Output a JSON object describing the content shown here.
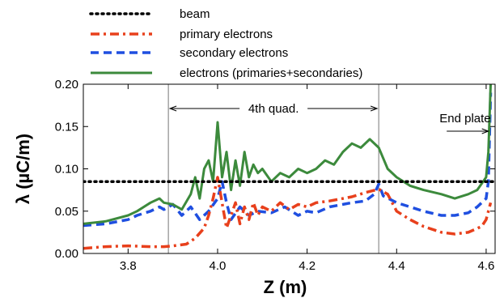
{
  "chart_data": {
    "type": "line",
    "title": "",
    "xlabel": "Z (m)",
    "ylabel": "λ (µC/m)",
    "xlim": [
      3.7,
      4.62
    ],
    "ylim": [
      0.0,
      0.2
    ],
    "xticks": [
      "3.8",
      "4.0",
      "4.2",
      "4.4",
      "4.6"
    ],
    "yticks": [
      "0.00",
      "0.05",
      "0.10",
      "0.15",
      "0.20"
    ],
    "grid": false,
    "legend_position": "top-left, above plot",
    "vlines": [
      3.89,
      4.36
    ],
    "annotations": {
      "quad_label": "4th quad.",
      "quad_range": [
        3.89,
        4.36
      ],
      "endplate_label": "End plate",
      "endplate_arrow_from": 4.53,
      "endplate_arrow_to": 4.605
    },
    "series": [
      {
        "name": "beam",
        "color": "#000000",
        "style": "dotted",
        "x": [
          3.7,
          4.62
        ],
        "y": [
          0.085,
          0.085
        ]
      },
      {
        "name": "primary electrons",
        "color": "#e8401c",
        "style": "dashdot",
        "x": [
          3.7,
          3.75,
          3.8,
          3.85,
          3.88,
          3.9,
          3.93,
          3.95,
          3.97,
          3.98,
          3.99,
          4.0,
          4.01,
          4.02,
          4.03,
          4.04,
          4.05,
          4.06,
          4.07,
          4.08,
          4.09,
          4.1,
          4.12,
          4.14,
          4.16,
          4.18,
          4.2,
          4.22,
          4.25,
          4.28,
          4.3,
          4.33,
          4.36,
          4.38,
          4.4,
          4.43,
          4.46,
          4.5,
          4.53,
          4.56,
          4.59,
          4.6,
          4.605,
          4.61
        ],
        "y": [
          0.006,
          0.008,
          0.009,
          0.008,
          0.008,
          0.009,
          0.011,
          0.018,
          0.03,
          0.045,
          0.065,
          0.09,
          0.06,
          0.03,
          0.045,
          0.06,
          0.035,
          0.055,
          0.04,
          0.06,
          0.045,
          0.055,
          0.05,
          0.06,
          0.052,
          0.058,
          0.055,
          0.06,
          0.062,
          0.065,
          0.067,
          0.072,
          0.076,
          0.07,
          0.05,
          0.04,
          0.032,
          0.025,
          0.023,
          0.025,
          0.032,
          0.04,
          0.05,
          0.06
        ]
      },
      {
        "name": "secondary electrons",
        "color": "#1f4fe0",
        "style": "dashed",
        "x": [
          3.7,
          3.75,
          3.8,
          3.82,
          3.85,
          3.87,
          3.88,
          3.9,
          3.92,
          3.94,
          3.96,
          3.98,
          4.0,
          4.01,
          4.02,
          4.03,
          4.05,
          4.07,
          4.09,
          4.12,
          4.15,
          4.18,
          4.2,
          4.22,
          4.25,
          4.28,
          4.3,
          4.33,
          4.35,
          4.36,
          4.37,
          4.4,
          4.43,
          4.46,
          4.5,
          4.53,
          4.56,
          4.58,
          4.6,
          4.605,
          4.61
        ],
        "y": [
          0.033,
          0.035,
          0.04,
          0.045,
          0.05,
          0.055,
          0.052,
          0.058,
          0.045,
          0.055,
          0.04,
          0.05,
          0.065,
          0.085,
          0.06,
          0.04,
          0.055,
          0.045,
          0.05,
          0.048,
          0.055,
          0.045,
          0.05,
          0.048,
          0.055,
          0.058,
          0.06,
          0.062,
          0.07,
          0.082,
          0.068,
          0.06,
          0.055,
          0.05,
          0.045,
          0.045,
          0.048,
          0.055,
          0.065,
          0.085,
          0.19
        ]
      },
      {
        "name": "electrons (primaries+secondaries)",
        "color": "#3c8a3c",
        "style": "solid",
        "x": [
          3.7,
          3.75,
          3.8,
          3.82,
          3.85,
          3.87,
          3.88,
          3.9,
          3.92,
          3.94,
          3.95,
          3.96,
          3.97,
          3.98,
          3.99,
          4.0,
          4.01,
          4.02,
          4.03,
          4.04,
          4.05,
          4.06,
          4.07,
          4.08,
          4.09,
          4.1,
          4.12,
          4.14,
          4.16,
          4.18,
          4.2,
          4.22,
          4.24,
          4.26,
          4.28,
          4.3,
          4.32,
          4.34,
          4.36,
          4.38,
          4.4,
          4.43,
          4.46,
          4.5,
          4.53,
          4.56,
          4.58,
          4.6,
          4.605,
          4.61
        ],
        "y": [
          0.035,
          0.038,
          0.045,
          0.05,
          0.06,
          0.065,
          0.06,
          0.058,
          0.052,
          0.07,
          0.09,
          0.065,
          0.1,
          0.11,
          0.085,
          0.155,
          0.09,
          0.12,
          0.075,
          0.11,
          0.08,
          0.12,
          0.09,
          0.105,
          0.095,
          0.1,
          0.085,
          0.095,
          0.09,
          0.1,
          0.095,
          0.1,
          0.11,
          0.105,
          0.12,
          0.13,
          0.125,
          0.135,
          0.125,
          0.1,
          0.09,
          0.08,
          0.075,
          0.07,
          0.065,
          0.07,
          0.075,
          0.09,
          0.12,
          0.2
        ]
      }
    ]
  }
}
